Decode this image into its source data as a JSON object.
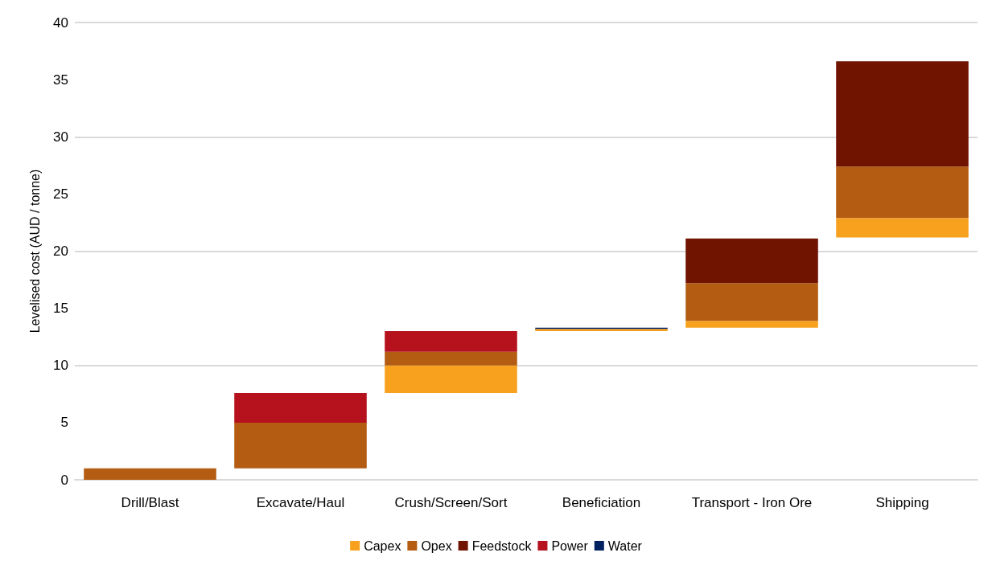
{
  "chart_data": {
    "type": "bar",
    "ylabel": "Levelised cost (AUD / tonne)",
    "categories": [
      "Drill/Blast",
      "Excavate/Haul",
      "Crush/Screen/Sort",
      "Beneficiation",
      "Transport - Iron Ore",
      "Shipping"
    ],
    "series": [
      {
        "name": "Capex",
        "color": "#f7a11e",
        "values": [
          null,
          null,
          2.4,
          0.2,
          0.6,
          1.7
        ],
        "base": [
          null,
          null,
          7.6,
          13.0,
          13.3,
          21.2
        ]
      },
      {
        "name": "Opex",
        "color": "#b35c12",
        "values": [
          1.0,
          4.0,
          1.2,
          null,
          3.3,
          4.5
        ],
        "base": [
          0,
          1.0,
          10.0,
          null,
          13.9,
          22.9
        ]
      },
      {
        "name": "Feedstock",
        "color": "#701400",
        "values": [
          null,
          null,
          null,
          null,
          3.9,
          9.2
        ],
        "base": [
          null,
          null,
          null,
          null,
          17.2,
          27.4
        ]
      },
      {
        "name": "Power",
        "color": "#b5121e",
        "values": [
          null,
          2.6,
          1.8,
          null,
          null,
          null
        ],
        "base": [
          null,
          5.0,
          11.2,
          null,
          null,
          null
        ]
      },
      {
        "name": "Water",
        "color": "#002060",
        "values": [
          null,
          null,
          null,
          0.1,
          null,
          null
        ],
        "base": [
          null,
          null,
          null,
          13.2,
          null,
          null
        ]
      }
    ],
    "ylim": [
      0,
      40
    ],
    "yticks": [
      0,
      5,
      10,
      15,
      20,
      25,
      30,
      35,
      40
    ],
    "grid": "y",
    "legend": "bottom"
  }
}
